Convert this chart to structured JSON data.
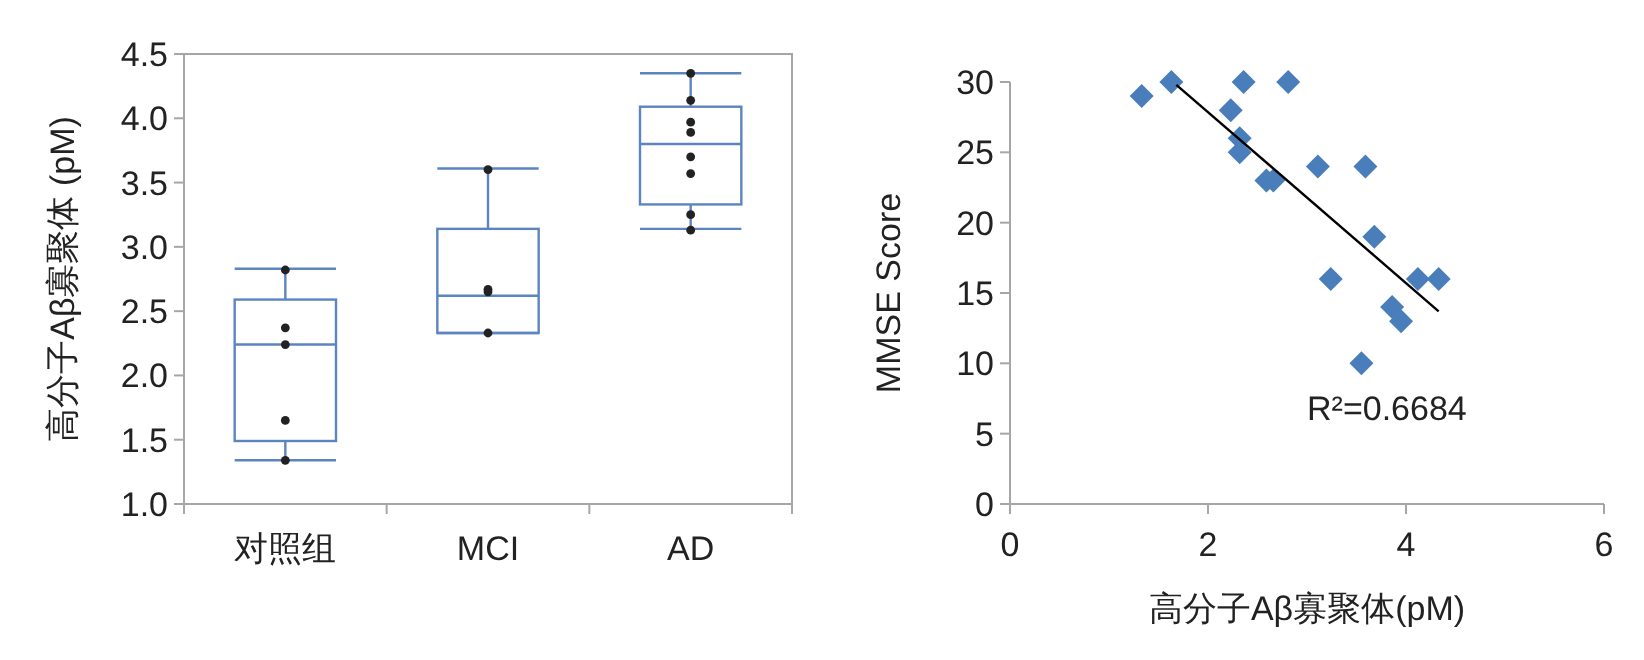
{
  "chart_data": [
    {
      "type": "box",
      "categories": [
        "对照组",
        "MCI",
        "AD"
      ],
      "ylabel": "高分子Aβ寡聚体 (pM)",
      "ylim": [
        1.0,
        4.5
      ],
      "yticks": [
        {
          "value": 1.0,
          "label": "1.0"
        },
        {
          "value": 1.5,
          "label": "1.5"
        },
        {
          "value": 2.0,
          "label": "2.0"
        },
        {
          "value": 2.5,
          "label": "2.5"
        },
        {
          "value": 3.0,
          "label": "3.0"
        },
        {
          "value": 3.5,
          "label": "3.5"
        },
        {
          "value": 4.0,
          "label": "4.0"
        },
        {
          "value": 4.5,
          "label": "4.5"
        }
      ],
      "series": [
        {
          "color": "#5b84c0",
          "boxes": [
            {
              "low": 1.34,
              "q1": 1.49,
              "median": 2.24,
              "q3": 2.59,
              "high": 2.83
            },
            {
              "low": 2.33,
              "q1": 2.33,
              "median": 2.62,
              "q3": 3.14,
              "high": 3.61
            },
            {
              "low": 3.14,
              "q1": 3.33,
              "median": 3.8,
              "q3": 4.09,
              "high": 4.35
            }
          ]
        },
        {
          "type": "scatter",
          "color": "#222222",
          "marker": "circle",
          "x": [
            "对照组",
            "对照组",
            "对照组",
            "对照组",
            "对照组",
            "MCI",
            "MCI",
            "MCI",
            "MCI",
            "AD",
            "AD",
            "AD",
            "AD",
            "AD",
            "AD",
            "AD",
            "AD"
          ],
          "values": [
            2.82,
            2.37,
            2.24,
            1.65,
            1.34,
            3.6,
            2.67,
            2.65,
            2.33,
            4.35,
            4.14,
            3.97,
            3.89,
            3.7,
            3.57,
            3.25,
            3.13
          ]
        }
      ]
    },
    {
      "type": "scatter",
      "xlabel": "高分子Aβ寡聚体(pM)",
      "ylabel": "MMSE Score",
      "xlim": [
        0,
        6
      ],
      "xticks": [
        0,
        2,
        4,
        6
      ],
      "ylim": [
        0,
        30
      ],
      "yticks": [
        0,
        5,
        10,
        15,
        20,
        25,
        30
      ],
      "annotations": [
        "R²=0.6684"
      ],
      "series": [
        {
          "color": "#4a7ebb",
          "marker": "diamond",
          "x": [
            1.33,
            1.63,
            2.23,
            2.36,
            2.32,
            2.32,
            2.81,
            2.59,
            2.66,
            3.11,
            3.59,
            3.68,
            3.24,
            4.12,
            4.33,
            3.86,
            3.95,
            3.55
          ],
          "values": [
            29,
            30,
            28,
            30,
            26,
            25,
            30,
            23,
            23,
            24,
            24,
            19,
            16,
            16,
            16,
            14,
            13,
            10
          ]
        },
        {
          "type": "line",
          "color": "#000000",
          "x": [
            1.68,
            4.33
          ],
          "values": [
            29.8,
            13.7
          ]
        }
      ]
    }
  ]
}
